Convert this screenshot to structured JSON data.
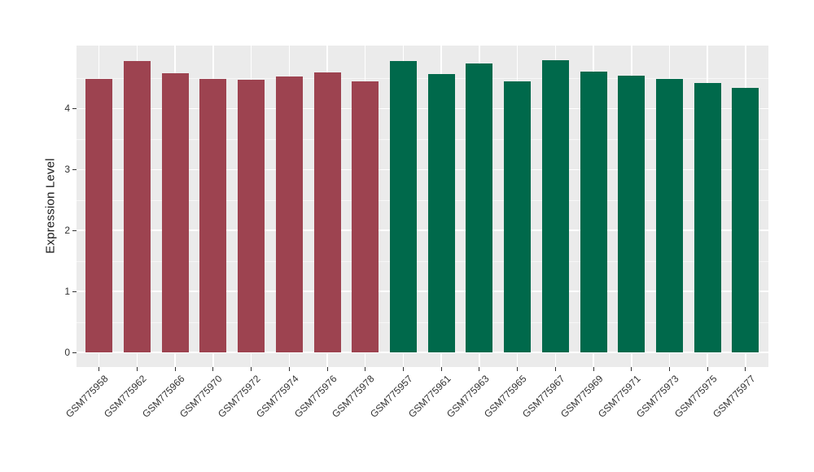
{
  "chart_data": {
    "type": "bar",
    "title": "",
    "xlabel": "",
    "ylabel": "Expression Level",
    "ylim": [
      0,
      5.01
    ],
    "yticks": [
      0,
      1,
      2,
      3,
      4
    ],
    "grid": {
      "horizontal_major": true,
      "horizontal_minor": true,
      "vertical_major_at_categories": true,
      "color": "#FFFFFF"
    },
    "legend_position": "none",
    "categories": [
      "GSM775958",
      "GSM775962",
      "GSM775966",
      "GSM775970",
      "GSM775972",
      "GSM775974",
      "GSM775976",
      "GSM775978",
      "GSM775957",
      "GSM775961",
      "GSM775963",
      "GSM775965",
      "GSM775967",
      "GSM775969",
      "GSM775971",
      "GSM775973",
      "GSM775975",
      "GSM775977"
    ],
    "values": [
      4.49,
      4.78,
      4.58,
      4.49,
      4.47,
      4.53,
      4.59,
      4.44,
      4.78,
      4.57,
      4.74,
      4.44,
      4.79,
      4.61,
      4.54,
      4.49,
      4.42,
      4.34
    ],
    "bar_colors": [
      "#9D4350",
      "#9D4350",
      "#9D4350",
      "#9D4350",
      "#9D4350",
      "#9D4350",
      "#9D4350",
      "#9D4350",
      "#00694B",
      "#00694B",
      "#00694B",
      "#00694B",
      "#00694B",
      "#00694B",
      "#00694B",
      "#00694B",
      "#00694B",
      "#00694B"
    ]
  },
  "style": {
    "plot_background": "#FFFFFF",
    "panel_background": "#EBEBEB",
    "gridline_color": "#FFFFFF",
    "axis_text_color": "#333333",
    "tick_color": "#333333"
  }
}
